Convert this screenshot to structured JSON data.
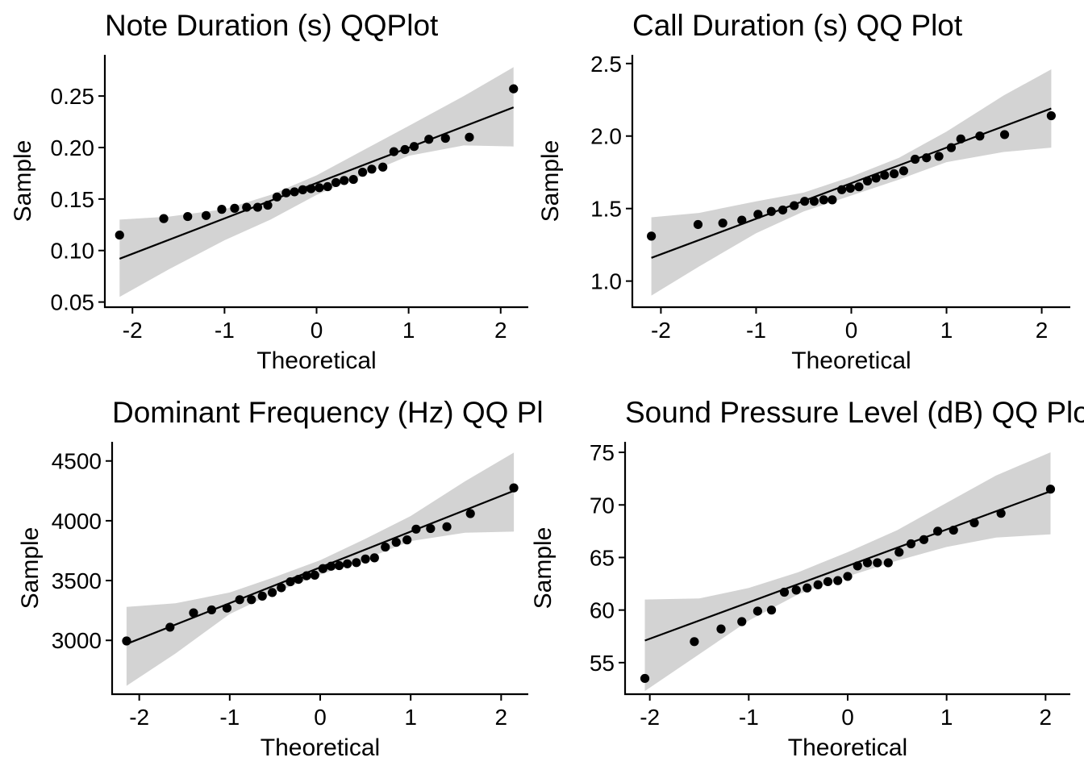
{
  "chart_data": [
    {
      "type": "scatter",
      "title": "Note Duration (s) QQPlot",
      "xlabel": "Theoretical",
      "ylabel": "Sample",
      "xlim": [
        -2.3,
        2.3
      ],
      "ylim": [
        0.045,
        0.29
      ],
      "xticks": [
        -2,
        -1,
        0,
        1,
        2
      ],
      "xtick_labels": [
        "-2",
        "-1",
        "0",
        "1",
        "2"
      ],
      "yticks": [
        0.05,
        0.1,
        0.15,
        0.2,
        0.25
      ],
      "ytick_labels": [
        "0.05",
        "0.10",
        "0.15",
        "0.20",
        "0.25"
      ],
      "grid": false,
      "series": [
        {
          "x": [
            -2.14,
            -1.66,
            -1.4,
            -1.2,
            -1.03,
            -0.89,
            -0.76,
            -0.64,
            -0.53,
            -0.43,
            -0.33,
            -0.24,
            -0.15,
            -0.06,
            0.03,
            0.12,
            0.21,
            0.3,
            0.4,
            0.5,
            0.6,
            0.72,
            0.84,
            0.96,
            1.06,
            1.22,
            1.4,
            1.66,
            2.14
          ],
          "y": [
            0.115,
            0.131,
            0.133,
            0.134,
            0.14,
            0.141,
            0.142,
            0.142,
            0.144,
            0.152,
            0.156,
            0.157,
            0.159,
            0.16,
            0.161,
            0.162,
            0.166,
            0.168,
            0.169,
            0.176,
            0.179,
            0.181,
            0.196,
            0.198,
            0.201,
            0.208,
            0.209,
            0.21,
            0.257
          ]
        }
      ],
      "reference_line": {
        "x": [
          -2.14,
          2.14
        ],
        "y": [
          0.092,
          0.239
        ]
      },
      "confidence_band": {
        "x": [
          -2.14,
          -1.6,
          -1.0,
          -0.5,
          0.0,
          0.5,
          1.0,
          1.6,
          2.14
        ],
        "lower": [
          0.055,
          0.082,
          0.11,
          0.13,
          0.154,
          0.173,
          0.192,
          0.202,
          0.201
        ],
        "upper": [
          0.13,
          0.133,
          0.14,
          0.154,
          0.173,
          0.197,
          0.221,
          0.25,
          0.278
        ]
      }
    },
    {
      "type": "scatter",
      "title": "Call Duration (s) QQ Plot",
      "xlabel": "Theoretical",
      "ylabel": "Sample",
      "xlim": [
        -2.3,
        2.3
      ],
      "ylim": [
        0.82,
        2.56
      ],
      "xticks": [
        -2,
        -1,
        0,
        1,
        2
      ],
      "xtick_labels": [
        "-2",
        "-1",
        "0",
        "1",
        "2"
      ],
      "yticks": [
        1.0,
        1.5,
        2.0,
        2.5
      ],
      "ytick_labels": [
        "1.0",
        "1.5",
        "2.0",
        "2.5"
      ],
      "grid": false,
      "series": [
        {
          "x": [
            -2.1,
            -1.61,
            -1.35,
            -1.15,
            -0.98,
            -0.84,
            -0.72,
            -0.6,
            -0.49,
            -0.39,
            -0.29,
            -0.2,
            -0.1,
            -0.01,
            0.08,
            0.17,
            0.26,
            0.35,
            0.45,
            0.55,
            0.67,
            0.79,
            0.92,
            1.05,
            1.15,
            1.35,
            1.61,
            2.1
          ],
          "y": [
            1.31,
            1.39,
            1.4,
            1.42,
            1.46,
            1.48,
            1.49,
            1.52,
            1.55,
            1.55,
            1.56,
            1.56,
            1.63,
            1.64,
            1.65,
            1.69,
            1.71,
            1.73,
            1.74,
            1.76,
            1.84,
            1.85,
            1.86,
            1.92,
            1.98,
            2.0,
            2.01,
            2.14
          ]
        }
      ],
      "reference_line": {
        "x": [
          -2.1,
          2.1
        ],
        "y": [
          1.16,
          2.19
        ]
      },
      "confidence_band": {
        "x": [
          -2.1,
          -1.6,
          -1.0,
          -0.5,
          0.0,
          0.5,
          1.0,
          1.6,
          2.1
        ],
        "lower": [
          0.9,
          1.1,
          1.33,
          1.48,
          1.59,
          1.7,
          1.82,
          1.89,
          1.92
        ],
        "upper": [
          1.44,
          1.47,
          1.55,
          1.61,
          1.72,
          1.85,
          2.03,
          2.28,
          2.46
        ]
      }
    },
    {
      "type": "scatter",
      "title": "Dominant Frequency (Hz) QQ Plot",
      "xlabel": "Theoretical",
      "ylabel": "Sample",
      "xlim": [
        -2.3,
        2.3
      ],
      "ylim": [
        2550,
        4660
      ],
      "xticks": [
        -2,
        -1,
        0,
        1,
        2
      ],
      "xtick_labels": [
        "-2",
        "-1",
        "0",
        "1",
        "2"
      ],
      "yticks": [
        3000,
        3500,
        4000,
        4500
      ],
      "ytick_labels": [
        "3000",
        "3500",
        "4000",
        "4500"
      ],
      "grid": false,
      "series": [
        {
          "x": [
            -2.14,
            -1.66,
            -1.4,
            -1.2,
            -1.03,
            -0.89,
            -0.76,
            -0.64,
            -0.53,
            -0.43,
            -0.33,
            -0.24,
            -0.15,
            -0.06,
            0.03,
            0.12,
            0.21,
            0.3,
            0.4,
            0.5,
            0.6,
            0.72,
            0.84,
            0.96,
            1.06,
            1.22,
            1.4,
            1.66,
            2.14
          ],
          "y": [
            2995,
            3110,
            3230,
            3255,
            3270,
            3340,
            3340,
            3370,
            3400,
            3440,
            3490,
            3510,
            3540,
            3545,
            3600,
            3620,
            3625,
            3640,
            3650,
            3680,
            3690,
            3780,
            3820,
            3840,
            3930,
            3935,
            3950,
            4060,
            4275
          ]
        }
      ],
      "reference_line": {
        "x": [
          -2.14,
          2.14
        ],
        "y": [
          2970,
          4250
        ]
      },
      "confidence_band": {
        "x": [
          -2.14,
          -1.6,
          -1.0,
          -0.5,
          0.0,
          0.5,
          1.0,
          1.6,
          2.14
        ],
        "lower": [
          2620,
          2890,
          3220,
          3400,
          3550,
          3680,
          3830,
          3900,
          3910
        ],
        "upper": [
          3280,
          3310,
          3400,
          3530,
          3670,
          3850,
          4040,
          4330,
          4570
        ]
      }
    },
    {
      "type": "scatter",
      "title": "Sound Pressure Level (dB) QQ Plot",
      "xlabel": "Theoretical",
      "ylabel": "Sample",
      "xlim": [
        -2.25,
        2.25
      ],
      "ylim": [
        52,
        76
      ],
      "xticks": [
        -2,
        -1,
        0,
        1,
        2
      ],
      "xtick_labels": [
        "-2",
        "-1",
        "0",
        "1",
        "2"
      ],
      "yticks": [
        55,
        60,
        65,
        70,
        75
      ],
      "ytick_labels": [
        "55",
        "60",
        "65",
        "70",
        "75"
      ],
      "grid": false,
      "series": [
        {
          "x": [
            -2.05,
            -1.55,
            -1.28,
            -1.07,
            -0.91,
            -0.77,
            -0.64,
            -0.52,
            -0.41,
            -0.3,
            -0.2,
            -0.1,
            0.0,
            0.1,
            0.2,
            0.3,
            0.41,
            0.52,
            0.64,
            0.77,
            0.91,
            1.07,
            1.28,
            1.55,
            2.05
          ],
          "y": [
            53.5,
            57.0,
            58.2,
            58.9,
            59.9,
            60.0,
            61.7,
            61.9,
            62.1,
            62.4,
            62.7,
            62.8,
            63.2,
            64.2,
            64.5,
            64.5,
            64.5,
            65.5,
            66.3,
            66.7,
            67.5,
            67.6,
            68.3,
            69.2,
            71.5
          ]
        }
      ],
      "reference_line": {
        "x": [
          -2.05,
          2.05
        ],
        "y": [
          57.1,
          71.3
        ]
      },
      "confidence_band": {
        "x": [
          -2.05,
          -1.5,
          -1.0,
          -0.5,
          0.0,
          0.5,
          1.0,
          1.5,
          2.05
        ],
        "lower": [
          52.3,
          55.8,
          59.0,
          61.5,
          63.2,
          64.7,
          66.0,
          66.9,
          67.2
        ],
        "upper": [
          61.0,
          61.1,
          62.1,
          63.6,
          65.5,
          67.6,
          70.2,
          72.8,
          75.0
        ]
      }
    }
  ]
}
